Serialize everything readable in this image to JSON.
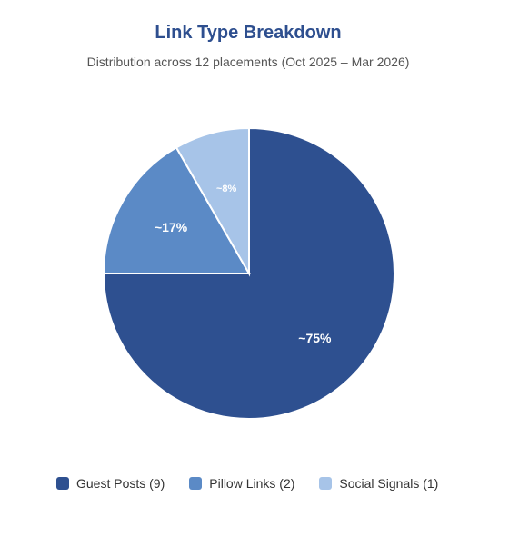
{
  "chart_data": {
    "type": "pie",
    "title": "Link Type Breakdown",
    "subtitle": "Distribution across 12 placements (Oct 2025 – Mar 2026)",
    "slices": [
      {
        "name": "Guest Posts (9)",
        "value": 9,
        "label": "~75%",
        "color": "#2e5090"
      },
      {
        "name": "Pillow Links (2)",
        "value": 2,
        "label": "~17%",
        "color": "#5b8ac6"
      },
      {
        "name": "Social Signals (1)",
        "value": 1,
        "label": "~8%",
        "color": "#a7c4e8"
      }
    ],
    "legend_position": "bottom"
  }
}
